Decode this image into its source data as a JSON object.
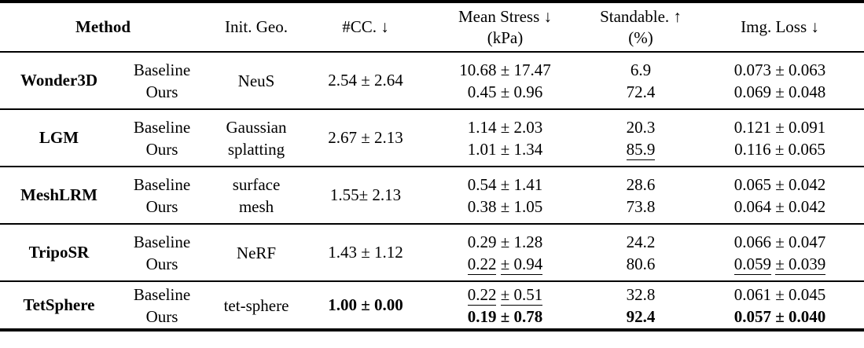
{
  "header": {
    "method": "Method",
    "init_geo": "Init. Geo.",
    "cc": "#CC. ↓",
    "mean_stress": "Mean Stress ↓",
    "mean_stress_unit": "(kPa)",
    "standable": "Standable. ↑",
    "standable_unit": "(%)",
    "img_loss": "Img. Loss ↓"
  },
  "rows": [
    {
      "method": "Wonder3D",
      "variants": [
        "Baseline",
        "Ours"
      ],
      "init_geo": "NeuS",
      "cc": "2.54 ± 2.64",
      "mean_stress": [
        "10.68 ± 17.47",
        "0.45 ± 0.96"
      ],
      "standable": [
        "6.9",
        "72.4"
      ],
      "img_loss": [
        "0.073 ± 0.063",
        "0.069 ± 0.048"
      ]
    },
    {
      "method": "LGM",
      "variants": [
        "Baseline",
        "Ours"
      ],
      "init_geo": "Gaussian splatting",
      "cc": "2.67 ± 2.13",
      "mean_stress": [
        "1.14 ± 2.03",
        "1.01 ± 1.34"
      ],
      "standable": [
        "20.3",
        "85.9"
      ],
      "img_loss": [
        "0.121 ± 0.091",
        "0.116 ± 0.065"
      ]
    },
    {
      "method": "MeshLRM",
      "variants": [
        "Baseline",
        "Ours"
      ],
      "init_geo": "surface mesh",
      "cc": "1.55± 2.13",
      "mean_stress": [
        "0.54 ± 1.41",
        "0.38 ± 1.05"
      ],
      "standable": [
        "28.6",
        "73.8"
      ],
      "img_loss": [
        "0.065 ± 0.042",
        "0.064 ± 0.042"
      ]
    },
    {
      "method": "TripoSR",
      "variants": [
        "Baseline",
        "Ours"
      ],
      "init_geo": "NeRF",
      "cc": "1.43 ± 1.12",
      "mean_stress": [
        "0.29 ± 1.28",
        "0.22 ± 0.94"
      ],
      "standable": [
        "24.2",
        "80.6"
      ],
      "img_loss": [
        "0.066 ± 0.047",
        "0.059 ± 0.039"
      ]
    },
    {
      "method": "TetSphere",
      "variants": [
        "Baseline",
        "Ours"
      ],
      "init_geo": "tet-sphere",
      "cc": "1.00 ± 0.00",
      "mean_stress": [
        "0.22 ± 0.51",
        "0.19 ± 0.78"
      ],
      "standable": [
        "32.8",
        "92.4"
      ],
      "img_loss": [
        "0.061 ± 0.045",
        "0.057 ± 0.040"
      ]
    }
  ]
}
